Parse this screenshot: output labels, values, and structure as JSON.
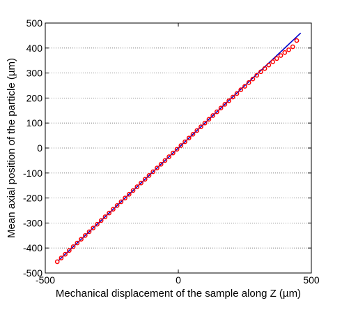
{
  "chart_data": {
    "type": "scatter",
    "xlabel": "Mechanical displacement of the sample along Z (µm)",
    "ylabel": "Mean axial position of the particle (µm)",
    "xlim": [
      -500,
      500
    ],
    "ylim": [
      -500,
      500
    ],
    "x_ticks": [
      -500,
      0,
      500
    ],
    "y_ticks": [
      -500,
      -400,
      -300,
      -200,
      -100,
      0,
      100,
      200,
      300,
      400,
      500
    ],
    "grid": "horizontal dotted",
    "legend": "none",
    "series": [
      {
        "kind": "line",
        "color": "#0000cc",
        "x": [
          -450,
          460
        ],
        "y": [
          -450,
          460
        ]
      },
      {
        "kind": "markers",
        "marker": "open-circle",
        "color": "#ff0000",
        "x": [
          -455,
          -440,
          -425,
          -410,
          -395,
          -380,
          -365,
          -350,
          -335,
          -320,
          -305,
          -290,
          -275,
          -260,
          -245,
          -230,
          -215,
          -200,
          -185,
          -170,
          -155,
          -140,
          -125,
          -110,
          -95,
          -80,
          -65,
          -50,
          -35,
          -20,
          -5,
          10,
          25,
          40,
          55,
          70,
          85,
          100,
          115,
          130,
          145,
          160,
          175,
          190,
          205,
          220,
          235,
          250,
          265,
          280,
          295,
          310,
          325,
          340,
          355,
          370,
          385,
          400,
          415,
          430,
          445
        ],
        "y": [
          -455,
          -440,
          -425,
          -410,
          -395,
          -380,
          -365,
          -350,
          -335,
          -320,
          -305,
          -290,
          -275,
          -260,
          -245,
          -230,
          -215,
          -200,
          -185,
          -170,
          -155,
          -140,
          -125,
          -110,
          -95,
          -80,
          -65,
          -50,
          -35,
          -20,
          -5,
          10,
          25,
          40,
          55,
          70,
          85,
          100,
          115,
          130,
          145,
          160,
          175,
          189,
          204,
          218,
          233,
          247,
          262,
          276,
          291,
          305,
          318,
          332,
          345,
          358,
          370,
          382,
          393,
          405,
          430
        ]
      }
    ]
  }
}
